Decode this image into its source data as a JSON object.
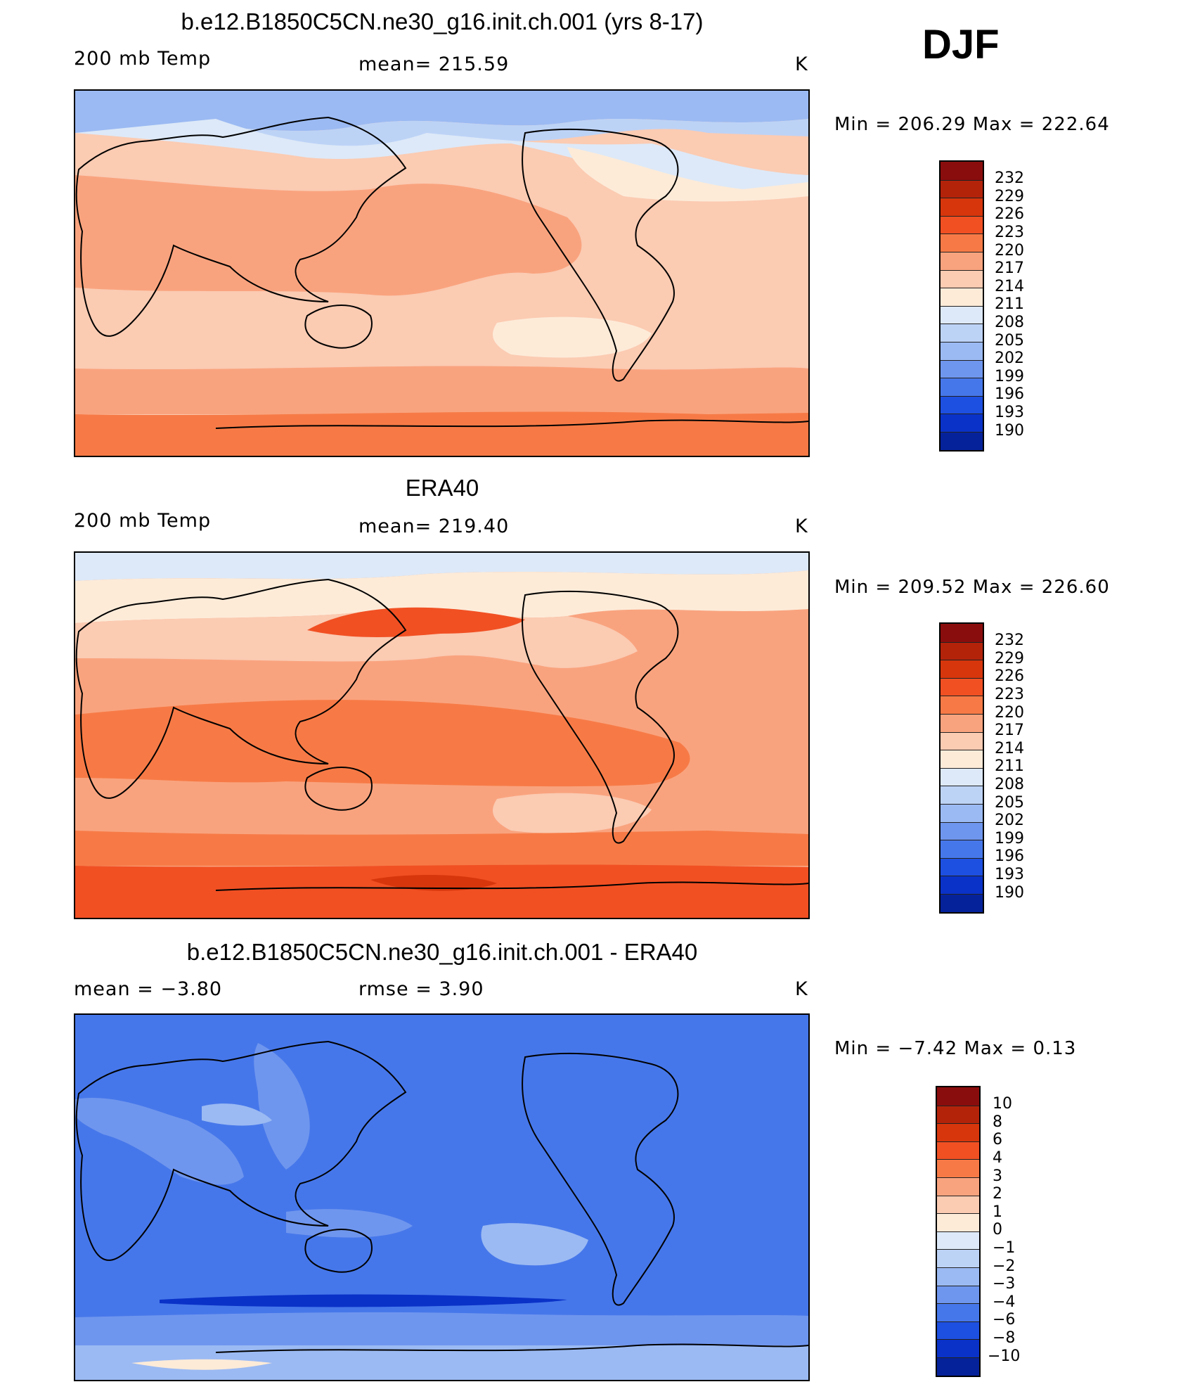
{
  "season": "DJF",
  "colors": {
    "temp_scale": [
      "#8a0d0d",
      "#b3230a",
      "#d7360c",
      "#f15023",
      "#f77a46",
      "#f9a37e",
      "#fbcbb2",
      "#fdebd8",
      "#dde9f8",
      "#bdd3f6",
      "#9bbaf3",
      "#6f96ee",
      "#4677ea",
      "#1d4fe0",
      "#0a32c8",
      "#06229a",
      "#061278"
    ],
    "diff_scale": [
      "#8a0d0d",
      "#b3230a",
      "#d7360c",
      "#f15023",
      "#f77a46",
      "#f9a37e",
      "#fbcbb2",
      "#fdebd8",
      "#dde9f8",
      "#bdd3f6",
      "#9bbaf3",
      "#6f96ee",
      "#4677ea",
      "#1d4fe0",
      "#0a32c8",
      "#06229a",
      "#061278"
    ],
    "coastline": "#000000"
  },
  "panels": [
    {
      "title": "b.e12.B1850C5CN.ne30_g16.init.ch.001 (yrs 8-17)",
      "left_label": "200 mb Temp",
      "center_label": "mean=  215.59",
      "units": "K",
      "min_max": "Min  =  206.29  Max  =  222.64",
      "colorbar_levels": [
        "232",
        "229",
        "226",
        "223",
        "220",
        "217",
        "214",
        "211",
        "208",
        "205",
        "202",
        "199",
        "196",
        "193",
        "190"
      ]
    },
    {
      "title": "ERA40",
      "left_label": "200 mb Temp",
      "center_label": "mean=  219.40",
      "units": "K",
      "min_max": "Min  =  209.52  Max  =  226.60",
      "colorbar_levels": [
        "232",
        "229",
        "226",
        "223",
        "220",
        "217",
        "214",
        "211",
        "208",
        "205",
        "202",
        "199",
        "196",
        "193",
        "190"
      ]
    },
    {
      "title": "b.e12.B1850C5CN.ne30_g16.init.ch.001 - ERA40",
      "left_label": "mean  =     −3.80",
      "center_label": "rmse  =     3.90",
      "units": "K",
      "min_max": "Min  =    −7.42  Max  =     0.13",
      "colorbar_levels": [
        "10",
        "8",
        "6",
        "4",
        "3",
        "2",
        "1",
        "0",
        "−1",
        "−2",
        "−3",
        "−4",
        "−6",
        "−8",
        "−10"
      ]
    }
  ]
}
